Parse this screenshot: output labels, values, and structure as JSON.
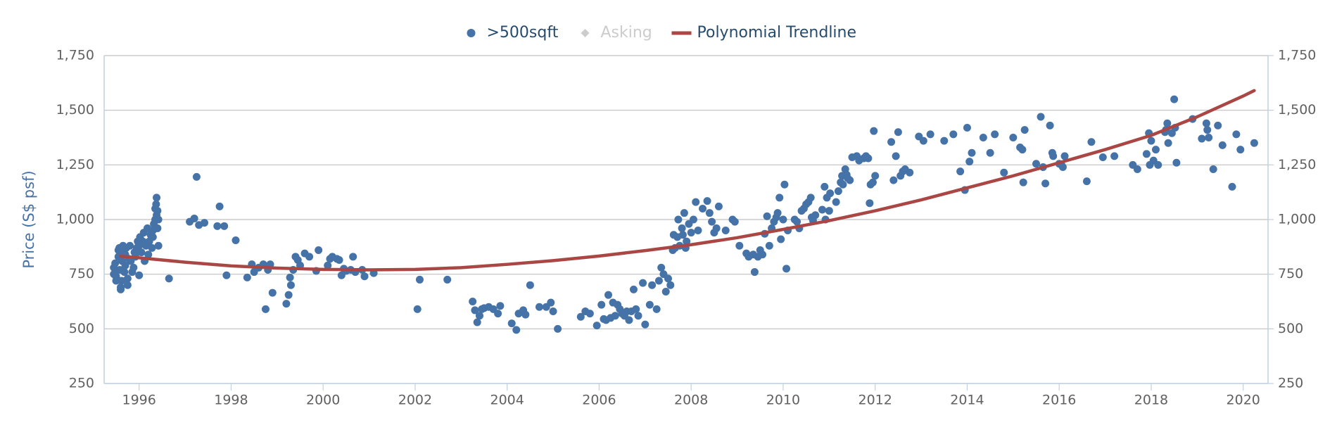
{
  "chart_data": {
    "type": "scatter",
    "y_axis_label": "Price (S$ psf)",
    "xlim": [
      1995.24,
      2020.54
    ],
    "xticks": [
      1996,
      1998,
      2000,
      2002,
      2004,
      2006,
      2008,
      2010,
      2012,
      2014,
      2016,
      2018,
      2020
    ],
    "ylim": [
      250,
      1750
    ],
    "yticks": [
      250,
      500,
      750,
      {
        "value": 1000,
        "label": "1,000"
      },
      {
        "value": 1250,
        "label": "1,250"
      },
      {
        "value": 1500,
        "label": "1,500"
      },
      {
        "value": 1750,
        "label": "1,750"
      }
    ],
    "y2lim": [
      250,
      1750
    ],
    "y2ticks": [
      250,
      500,
      750,
      {
        "value": 1000,
        "label": "1,000"
      },
      {
        "value": 1250,
        "label": "1,250"
      },
      {
        "value": 1500,
        "label": "1,500"
      },
      {
        "value": 1750,
        "label": "1,750"
      }
    ],
    "grid": true,
    "legend_position": "top",
    "series": [
      {
        "name": ">500sqft",
        "color": "#4572a7",
        "marker": "circle",
        "kind": "scatter",
        "x": [
          1995.45,
          1995.45,
          1995.48,
          1995.5,
          1995.5,
          1995.55,
          1995.55,
          1995.57,
          1995.58,
          1995.6,
          1995.6,
          1995.62,
          1995.63,
          1995.65,
          1995.65,
          1995.68,
          1995.7,
          1995.7,
          1995.72,
          1995.75,
          1995.75,
          1995.78,
          1995.8,
          1995.82,
          1995.85,
          1995.88,
          1995.9,
          1995.92,
          1995.95,
          1995.97,
          1996.0,
          1996.0,
          1996.02,
          1996.05,
          1996.08,
          1996.1,
          1996.12,
          1996.15,
          1996.18,
          1996.2,
          1996.22,
          1996.25,
          1996.28,
          1996.3,
          1996.3,
          1996.32,
          1996.35,
          1996.35,
          1996.37,
          1996.38,
          1996.38,
          1996.4,
          1996.4,
          1996.42,
          1996.42,
          1996.65,
          1997.1,
          1997.2,
          1997.25,
          1997.3,
          1997.42,
          1997.7,
          1997.75,
          1997.85,
          1997.9,
          1998.1,
          1998.35,
          1998.45,
          1998.5,
          1998.6,
          1998.7,
          1998.75,
          1998.8,
          1998.85,
          1998.9,
          1999.2,
          1999.25,
          1999.28,
          1999.3,
          1999.35,
          1999.4,
          1999.45,
          1999.5,
          1999.6,
          1999.7,
          1999.85,
          1999.9,
          2000.1,
          2000.15,
          2000.2,
          2000.3,
          2000.35,
          2000.4,
          2000.45,
          2000.5,
          2000.6,
          2000.65,
          2000.7,
          2000.85,
          2000.9,
          2001.1,
          2002.05,
          2002.1,
          2002.7,
          2003.25,
          2003.3,
          2003.35,
          2003.4,
          2003.45,
          2003.5,
          2003.6,
          2003.7,
          2003.8,
          2003.85,
          2004.1,
          2004.2,
          2004.25,
          2004.35,
          2004.4,
          2004.5,
          2004.7,
          2004.85,
          2004.95,
          2005.0,
          2005.1,
          2005.6,
          2005.7,
          2005.8,
          2005.95,
          2006.05,
          2006.1,
          2006.15,
          2006.2,
          2006.25,
          2006.3,
          2006.35,
          2006.4,
          2006.45,
          2006.5,
          2006.55,
          2006.6,
          2006.65,
          2006.7,
          2006.75,
          2006.8,
          2006.85,
          2006.95,
          2007.0,
          2007.1,
          2007.15,
          2007.25,
          2007.3,
          2007.35,
          2007.4,
          2007.45,
          2007.5,
          2007.55,
          2007.6,
          2007.62,
          2007.65,
          2007.7,
          2007.72,
          2007.75,
          2007.8,
          2007.82,
          2007.85,
          2007.88,
          2007.9,
          2007.95,
          2008.0,
          2008.05,
          2008.1,
          2008.15,
          2008.25,
          2008.35,
          2008.4,
          2008.45,
          2008.5,
          2008.55,
          2008.6,
          2008.75,
          2008.9,
          2008.95,
          2009.05,
          2009.2,
          2009.25,
          2009.35,
          2009.38,
          2009.45,
          2009.5,
          2009.55,
          2009.6,
          2009.65,
          2009.7,
          2009.75,
          2009.8,
          2009.85,
          2009.88,
          2009.92,
          2009.95,
          2010.0,
          2010.03,
          2010.07,
          2010.1,
          2010.25,
          2010.3,
          2010.35,
          2010.4,
          2010.45,
          2010.5,
          2010.55,
          2010.6,
          2010.62,
          2010.65,
          2010.7,
          2010.85,
          2010.9,
          2010.92,
          2010.95,
          2011.0,
          2011.02,
          2011.15,
          2011.2,
          2011.25,
          2011.28,
          2011.3,
          2011.35,
          2011.38,
          2011.4,
          2011.45,
          2011.5,
          2011.6,
          2011.65,
          2011.75,
          2011.8,
          2011.85,
          2011.88,
          2011.9,
          2011.95,
          2011.97,
          2012.0,
          2012.35,
          2012.4,
          2012.45,
          2012.5,
          2012.55,
          2012.6,
          2012.65,
          2012.75,
          2012.95,
          2013.05,
          2013.2,
          2013.5,
          2013.7,
          2013.85,
          2013.95,
          2014.0,
          2014.05,
          2014.1,
          2014.35,
          2014.5,
          2014.6,
          2014.8,
          2015.0,
          2015.15,
          2015.2,
          2015.22,
          2015.25,
          2015.5,
          2015.6,
          2015.65,
          2015.7,
          2015.8,
          2015.85,
          2015.87,
          2016.0,
          2016.05,
          2016.08,
          2016.12,
          2016.6,
          2016.7,
          2016.95,
          2017.2,
          2017.6,
          2017.7,
          2017.9,
          2017.95,
          2017.97,
          2018.0,
          2018.05,
          2018.1,
          2018.15,
          2018.3,
          2018.32,
          2018.35,
          2018.37,
          2018.45,
          2018.5,
          2018.52,
          2018.55,
          2018.9,
          2019.1,
          2019.2,
          2019.22,
          2019.25,
          2019.35,
          2019.45,
          2019.55,
          2019.76,
          2019.85,
          2019.94,
          2020.24
        ],
        "values": [
          780,
          750,
          800,
          740,
          720,
          830,
          860,
          870,
          770,
          680,
          690,
          720,
          810,
          850,
          880,
          760,
          790,
          840,
          870,
          700,
          730,
          820,
          880,
          810,
          760,
          780,
          850,
          830,
          870,
          900,
          745,
          880,
          920,
          850,
          900,
          940,
          810,
          880,
          960,
          840,
          900,
          930,
          870,
          920,
          950,
          980,
          1000,
          1050,
          1070,
          1100,
          1020,
          1040,
          960,
          1000,
          880,
          730,
          990,
          1005,
          1195,
          975,
          985,
          970,
          1060,
          970,
          745,
          905,
          735,
          795,
          760,
          780,
          795,
          590,
          770,
          795,
          665,
          615,
          655,
          735,
          700,
          770,
          830,
          815,
          790,
          845,
          830,
          765,
          860,
          790,
          820,
          830,
          820,
          815,
          745,
          775,
          765,
          770,
          830,
          760,
          770,
          740,
          755,
          590,
          725,
          725,
          625,
          585,
          530,
          560,
          590,
          595,
          600,
          590,
          570,
          605,
          525,
          495,
          570,
          585,
          565,
          700,
          600,
          600,
          620,
          580,
          500,
          555,
          580,
          570,
          515,
          610,
          545,
          540,
          655,
          550,
          620,
          560,
          610,
          590,
          570,
          560,
          580,
          540,
          580,
          680,
          590,
          560,
          710,
          520,
          610,
          700,
          590,
          720,
          780,
          750,
          670,
          730,
          700,
          860,
          930,
          870,
          920,
          1000,
          880,
          960,
          930,
          1030,
          870,
          900,
          980,
          940,
          1000,
          1080,
          950,
          1050,
          1085,
          1030,
          990,
          940,
          960,
          1060,
          950,
          1000,
          990,
          880,
          845,
          830,
          840,
          760,
          830,
          860,
          840,
          935,
          1015,
          880,
          960,
          990,
          1010,
          1030,
          1100,
          910,
          1000,
          1160,
          775,
          950,
          1000,
          990,
          960,
          1040,
          1050,
          1070,
          1080,
          1100,
          1010,
          995,
          1020,
          1045,
          1150,
          1000,
          1100,
          1040,
          1120,
          1080,
          1130,
          1170,
          1200,
          1160,
          1230,
          1205,
          1190,
          1180,
          1285,
          1290,
          1270,
          1280,
          1290,
          1280,
          1075,
          1160,
          1170,
          1405,
          1200,
          1355,
          1180,
          1290,
          1400,
          1200,
          1220,
          1230,
          1215,
          1380,
          1360,
          1390,
          1360,
          1390,
          1220,
          1135,
          1420,
          1265,
          1305,
          1375,
          1305,
          1390,
          1215,
          1375,
          1330,
          1320,
          1170,
          1410,
          1255,
          1470,
          1240,
          1165,
          1430,
          1305,
          1290,
          1255,
          1250,
          1240,
          1290,
          1175,
          1355,
          1285,
          1290,
          1250,
          1230,
          1300,
          1395,
          1250,
          1360,
          1270,
          1320,
          1250,
          1400,
          1410,
          1440,
          1350,
          1395,
          1550,
          1420,
          1260,
          1460,
          1370,
          1440,
          1410,
          1375,
          1230,
          1430,
          1340,
          1150,
          1390,
          1320,
          1350
        ]
      },
      {
        "name": "Asking",
        "color": "#cccccc",
        "marker": "diamond",
        "kind": "scatter",
        "visible": false,
        "x": [],
        "values": []
      },
      {
        "name": "Polynomial Trendline",
        "color": "#aa4643",
        "kind": "line",
        "x": [
          1995.6,
          1996,
          1997,
          1998,
          1999,
          2000,
          2001,
          2002,
          2003,
          2004,
          2005,
          2006,
          2007,
          2008,
          2009,
          2010,
          2011,
          2012,
          2013,
          2014,
          2015,
          2016,
          2017,
          2018,
          2019,
          2020,
          2020.24
        ],
        "values": [
          832,
          825,
          805,
          788,
          778,
          772,
          770,
          772,
          780,
          795,
          812,
          833,
          858,
          885,
          917,
          955,
          995,
          1040,
          1090,
          1145,
          1200,
          1260,
          1320,
          1385,
          1470,
          1565,
          1590
        ]
      }
    ]
  }
}
